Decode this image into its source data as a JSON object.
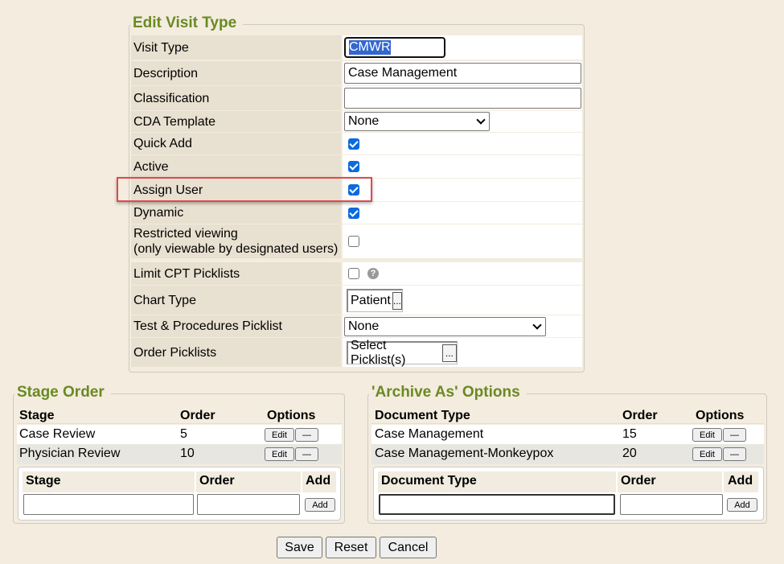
{
  "edit": {
    "title": "Edit Visit Type",
    "visit_type": {
      "label": "Visit Type",
      "value": "CMWR"
    },
    "description": {
      "label": "Description",
      "value": "Case Management"
    },
    "classification": {
      "label": "Classification",
      "value": ""
    },
    "cda": {
      "label": "CDA Template",
      "value": "None"
    },
    "quick_add": {
      "label": "Quick Add",
      "checked": true
    },
    "active": {
      "label": "Active",
      "checked": true
    },
    "assign_user": {
      "label": "Assign User",
      "checked": true
    },
    "dynamic": {
      "label": "Dynamic",
      "checked": true
    },
    "restricted": {
      "label1": "Restricted viewing",
      "label2": "(only viewable by designated users)",
      "checked": false
    },
    "limit_cpt": {
      "label": "Limit CPT Picklists",
      "checked": false
    },
    "chart_type": {
      "label": "Chart Type",
      "value": "Patient",
      "button": "..."
    },
    "test_proc": {
      "label": "Test & Procedures Picklist",
      "value": "None"
    },
    "order_picklists": {
      "label": "Order Picklists",
      "value": "Select Picklist(s)",
      "button": "..."
    }
  },
  "stage": {
    "title": "Stage Order",
    "headers": [
      "Stage",
      "Order",
      "Options"
    ],
    "rows": [
      {
        "name": "Case Review",
        "order": "5"
      },
      {
        "name": "Physician Review",
        "order": "10"
      }
    ],
    "add_headers": [
      "Stage",
      "Order",
      "Add"
    ],
    "add_button": "Add"
  },
  "archive": {
    "title": "'Archive As' Options",
    "headers": [
      "Document Type",
      "Order",
      "Options"
    ],
    "rows": [
      {
        "name": "Case Management",
        "order": "15"
      },
      {
        "name": "Case Management-Monkeypox",
        "order": "20"
      }
    ],
    "add_headers": [
      "Document Type",
      "Order",
      "Add"
    ],
    "add_button": "Add"
  },
  "row_buttons": {
    "edit": "Edit",
    "remove": "—"
  },
  "footer": {
    "save": "Save",
    "reset": "Reset",
    "cancel": "Cancel"
  },
  "highlight_color": "#e0484e"
}
